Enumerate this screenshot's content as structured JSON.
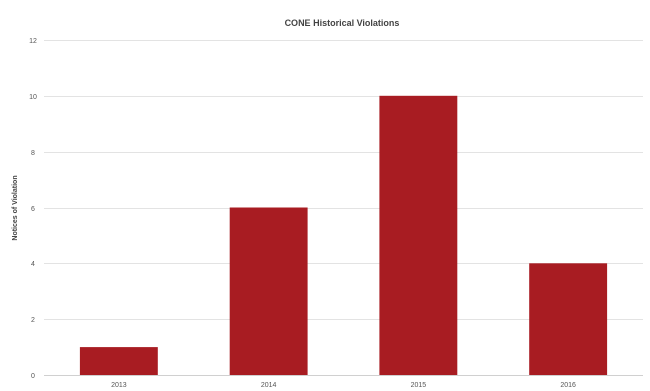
{
  "chart_data": {
    "type": "bar",
    "title": "CONE Historical Violations",
    "xlabel": "",
    "ylabel": "Notices of Violation",
    "categories": [
      "2013",
      "2014",
      "2015",
      "2016"
    ],
    "values": [
      1,
      6,
      10,
      4
    ],
    "ylim": [
      0,
      12
    ],
    "yticks": [
      0,
      2,
      4,
      6,
      8,
      10,
      12
    ],
    "grid": true,
    "legend": "none",
    "bar_color": "#a81c22"
  }
}
